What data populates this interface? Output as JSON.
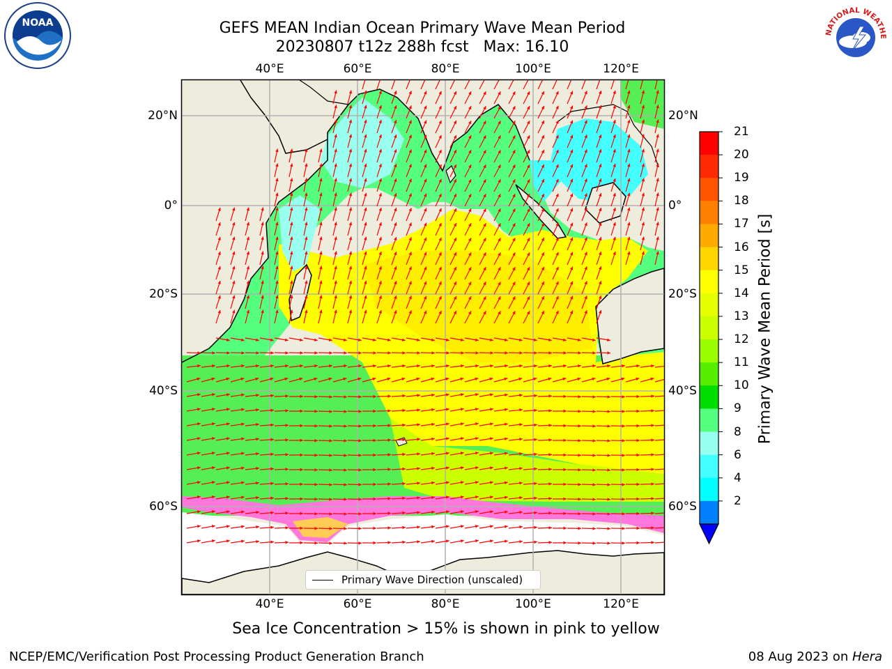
{
  "title": {
    "line1": "GEFS MEAN Indian Ocean Primary Wave Mean Period",
    "line2": "20230807 t12z 288h fcst   Max: 16.10"
  },
  "map": {
    "top_lon_labels": [
      "40°E",
      "60°E",
      "80°E",
      "100°E",
      "120°E"
    ],
    "bottom_lon_labels": [
      "40°E",
      "60°E",
      "80°E",
      "100°E",
      "120°E"
    ],
    "left_lat_labels": [
      "20°N",
      "0°",
      "20°S",
      "40°S",
      "60°S"
    ],
    "right_lat_labels": [
      "20°N",
      "0°",
      "20°S",
      "40°S",
      "60°S"
    ],
    "legend_label": "Primary Wave Direction (unscaled)",
    "arrow_color": "#ff0000",
    "land_color": "#eeecdc"
  },
  "colorbar": {
    "title": "Primary Wave Mean Period [s]",
    "tick_labels": [
      "21",
      "20",
      "19",
      "18",
      "17",
      "16",
      "15",
      "14",
      "13",
      "12",
      "11",
      "10",
      "9",
      "8",
      "6",
      "4",
      "2"
    ],
    "colors_top_to_bottom": [
      "#ff0000",
      "#ff2a00",
      "#ff5500",
      "#ff8000",
      "#ffaa00",
      "#ffd500",
      "#ffff00",
      "#e6ff00",
      "#ccff00",
      "#99ff00",
      "#55ee00",
      "#00dd00",
      "#55ff7f",
      "#99ffee",
      "#44ffff",
      "#00ffff",
      "#0080ff"
    ],
    "extend_color": "#0000ff"
  },
  "note": "Sea Ice Concentration > 15% is shown in pink to yellow",
  "footer": {
    "left": "NCEP/EMC/Verification Post Processing Product Generation Branch",
    "date": "08 Aug 2023 on ",
    "machine": "Hera"
  },
  "logos": {
    "noaa_text": "NOAA",
    "nws_text": "NATIONAL WEATHER SERVICE"
  }
}
